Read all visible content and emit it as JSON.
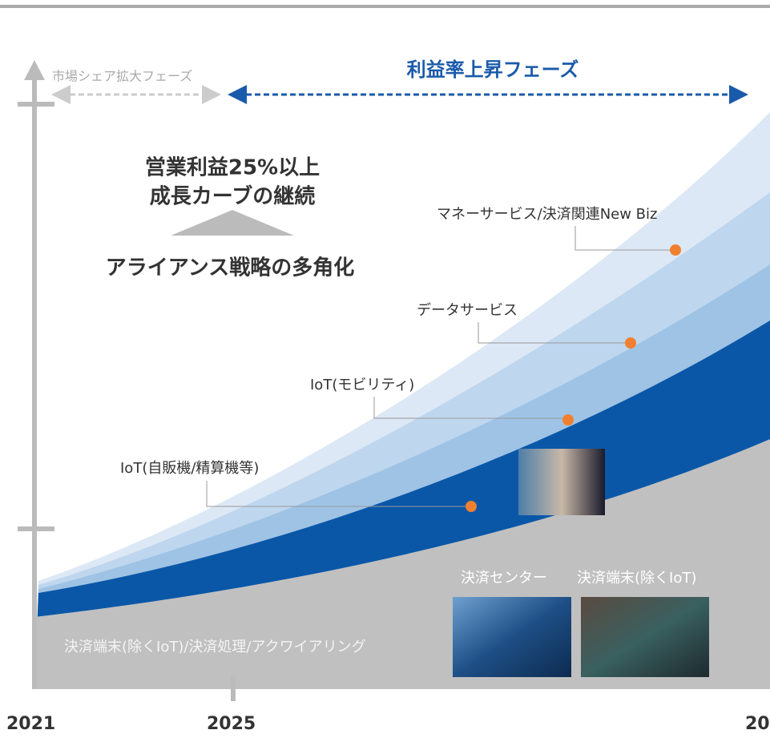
{
  "phases": [
    {
      "label": "市場シェア拡大フェーズ"
    },
    {
      "label": "利益率上昇フェーズ"
    }
  ],
  "headline": {
    "lines": [
      "営業利益25%以上",
      "成長カーブの継続"
    ]
  },
  "strategy": "アライアンス戦略の多角化",
  "layers": [
    {
      "label": "マネーサービス/決済関連New Biz"
    },
    {
      "label": "データサービス"
    },
    {
      "label": "IoT(モビリティ)"
    },
    {
      "label": "IoT(自販機/精算機等)"
    },
    {
      "label": "決済端末(除くIoT)/決済処理/アクワイアリング"
    }
  ],
  "photos": [
    {
      "caption": "決済センター"
    },
    {
      "caption": "決済端末(除くIoT)"
    }
  ],
  "years": [
    "2021",
    "2025",
    "20"
  ]
}
